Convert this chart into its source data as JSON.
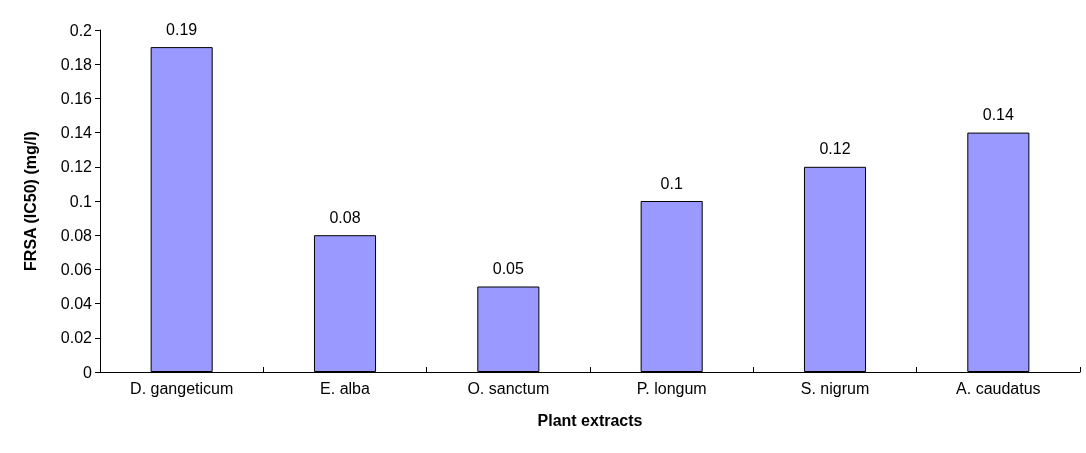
{
  "chart_data": {
    "type": "bar",
    "xlabel": "Plant extracts",
    "ylabel": "FRSA (IC50) (mg/l)",
    "categories": [
      "D. gangeticum",
      "E. alba",
      "O. sanctum",
      "P. longum",
      "S. nigrum",
      "A. caudatus"
    ],
    "values": [
      0.19,
      0.08,
      0.05,
      0.1,
      0.12,
      0.14
    ],
    "color": "#9999ff",
    "ylim": [
      0,
      0.2
    ],
    "yticks": [
      0,
      0.02,
      0.04,
      0.06,
      0.08,
      0.1,
      0.12,
      0.14,
      0.16,
      0.18,
      0.2
    ],
    "data_labels": true,
    "grid": false
  }
}
